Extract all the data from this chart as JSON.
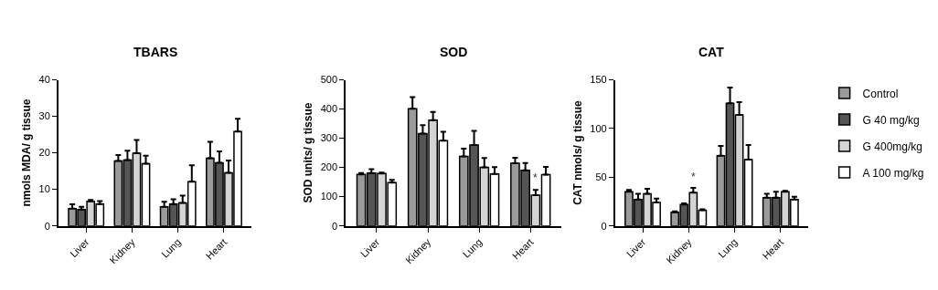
{
  "chart_data": [
    {
      "type": "bar",
      "title": "TBARS",
      "ylabel": "nmols MDA/ g tissue",
      "categories": [
        "Liver",
        "Kidney",
        "Lung",
        "Heart"
      ],
      "ylim": [
        0,
        40
      ],
      "yticks": [
        0,
        10,
        20,
        30,
        40
      ],
      "legend": false,
      "series": [
        {
          "color": "#9a9a9a",
          "values": [
            4.7,
            17.8,
            5.2,
            18.5
          ],
          "errors": [
            [
              4.7,
              5.9
            ],
            [
              17.8,
              19.4
            ],
            [
              5.2,
              6.6
            ],
            [
              18.5,
              23.0
            ]
          ]
        },
        {
          "color": "#555555",
          "values": [
            4.5,
            18.0,
            6.0,
            17.3
          ],
          "errors": [
            [
              4.5,
              5.2
            ],
            [
              18.0,
              20.6
            ],
            [
              6.0,
              7.3
            ],
            [
              17.3,
              20.4
            ]
          ]
        },
        {
          "color": "#d4d4d4",
          "values": [
            6.7,
            19.9,
            6.3,
            14.5
          ],
          "errors": [
            [
              6.7,
              7.1
            ],
            [
              19.9,
              23.5
            ],
            [
              6.3,
              8.3
            ],
            [
              14.5,
              17.9
            ]
          ]
        },
        {
          "color": "#ffffff",
          "values": [
            6.0,
            17.0,
            12.1,
            25.8
          ],
          "errors": [
            [
              6.0,
              6.8
            ],
            [
              17.0,
              19.2
            ],
            [
              12.1,
              16.6
            ],
            [
              25.8,
              29.3
            ]
          ]
        }
      ]
    },
    {
      "type": "bar",
      "title": "SOD",
      "ylabel": "SOD units/ g tissue",
      "categories": [
        "Liver",
        "Kidney",
        "Lung",
        "Heart"
      ],
      "ylim": [
        0,
        500
      ],
      "yticks": [
        0,
        100,
        200,
        300,
        400,
        500
      ],
      "legend": false,
      "annotations": [
        {
          "text": "*",
          "x": "Heart",
          "y": 135
        }
      ],
      "series": [
        {
          "color": "#9a9a9a",
          "values": [
            176,
            401,
            238,
            214
          ],
          "errors": [
            [
              176,
              181
            ],
            [
              401,
              441
            ],
            [
              238,
              264
            ],
            [
              214,
              233
            ]
          ]
        },
        {
          "color": "#555555",
          "values": [
            181,
            316,
            277,
            190
          ],
          "errors": [
            [
              181,
              194
            ],
            [
              316,
              345
            ],
            [
              277,
              325
            ],
            [
              190,
              215
            ]
          ]
        },
        {
          "color": "#d4d4d4",
          "values": [
            179,
            362,
            200,
            105
          ],
          "errors": [
            [
              179,
              182
            ],
            [
              362,
              390
            ],
            [
              200,
              232
            ],
            [
              105,
              123
            ]
          ]
        },
        {
          "color": "#ffffff",
          "values": [
            148,
            292,
            178,
            175
          ],
          "errors": [
            [
              148,
              157
            ],
            [
              292,
              322
            ],
            [
              178,
              201
            ],
            [
              175,
              202
            ]
          ]
        }
      ]
    },
    {
      "type": "bar",
      "title": "CAT",
      "ylabel": "CAT nmols/ g tissue",
      "categories": [
        "Liver",
        "Kidney",
        "Lung",
        "Heart"
      ],
      "ylim": [
        0,
        150
      ],
      "yticks": [
        0,
        50,
        100,
        150
      ],
      "legend": "top right",
      "annotations": [
        {
          "text": "*",
          "x": "Kidney",
          "y": 42
        }
      ],
      "series": [
        {
          "name": "Control",
          "color": "#9a9a9a",
          "values": [
            35,
            14,
            72,
            29
          ],
          "errors": [
            [
              35,
              37
            ],
            [
              14,
              15
            ],
            [
              72,
              82
            ],
            [
              29,
              33
            ]
          ]
        },
        {
          "name": "G 40 mg/kg",
          "color": "#555555",
          "values": [
            27,
            22,
            126,
            29
          ],
          "errors": [
            [
              27,
              33
            ],
            [
              22,
              23
            ],
            [
              126,
              142
            ],
            [
              29,
              35
            ]
          ]
        },
        {
          "name": "G 400mg/kg",
          "color": "#d4d4d4",
          "values": [
            33,
            34,
            114,
            35
          ],
          "errors": [
            [
              33,
              38
            ],
            [
              34,
              39
            ],
            [
              114,
              127
            ],
            [
              35,
              36
            ]
          ]
        },
        {
          "name": "A 100 mg/kg",
          "color": "#ffffff",
          "values": [
            24,
            16,
            68,
            27
          ],
          "errors": [
            [
              24,
              28
            ],
            [
              16,
              17
            ],
            [
              68,
              83
            ],
            [
              27,
              30
            ]
          ]
        }
      ]
    }
  ]
}
